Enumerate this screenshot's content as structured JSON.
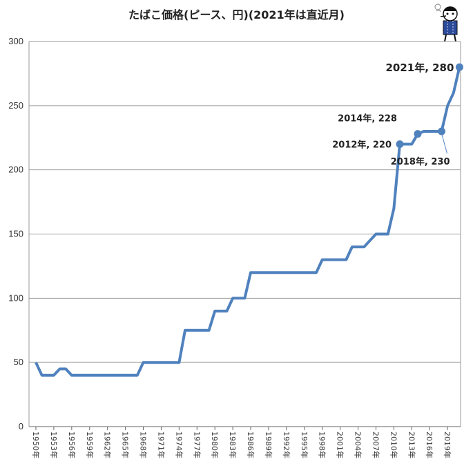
{
  "chart_data": {
    "type": "line",
    "title": "たばこ価格(ピース、円)(2021年は直近月)",
    "xlabel": "",
    "ylabel": "",
    "ylim": [
      0,
      300
    ],
    "yticks": [
      0,
      50,
      100,
      150,
      200,
      250,
      300
    ],
    "grid": true,
    "xlim": [
      1950,
      2021
    ],
    "xtick_labels": [
      "1950年",
      "1953年",
      "1956年",
      "1959年",
      "1962年",
      "1965年",
      "1968年",
      "1971年",
      "1974年",
      "1977年",
      "1980年",
      "1983年",
      "1986年",
      "1989年",
      "1992年",
      "1995年",
      "1998年",
      "2001年",
      "2004年",
      "2007年",
      "2010年",
      "2013年",
      "2016年",
      "2019年"
    ],
    "xtick_years": [
      1950,
      1953,
      1956,
      1959,
      1962,
      1965,
      1968,
      1971,
      1974,
      1977,
      1980,
      1983,
      1986,
      1989,
      1992,
      1995,
      1998,
      2001,
      2004,
      2007,
      2010,
      2013,
      2016,
      2019
    ],
    "series": [
      {
        "name": "",
        "color": "#4f81bd",
        "points": [
          [
            1950,
            50
          ],
          [
            1951,
            40
          ],
          [
            1952,
            40
          ],
          [
            1953,
            40
          ],
          [
            1954,
            45
          ],
          [
            1955,
            45
          ],
          [
            1956,
            40
          ],
          [
            1957,
            40
          ],
          [
            1958,
            40
          ],
          [
            1959,
            40
          ],
          [
            1960,
            40
          ],
          [
            1961,
            40
          ],
          [
            1962,
            40
          ],
          [
            1963,
            40
          ],
          [
            1964,
            40
          ],
          [
            1965,
            40
          ],
          [
            1966,
            40
          ],
          [
            1967,
            40
          ],
          [
            1968,
            50
          ],
          [
            1969,
            50
          ],
          [
            1970,
            50
          ],
          [
            1971,
            50
          ],
          [
            1972,
            50
          ],
          [
            1973,
            50
          ],
          [
            1974,
            50
          ],
          [
            1975,
            75
          ],
          [
            1976,
            75
          ],
          [
            1977,
            75
          ],
          [
            1978,
            75
          ],
          [
            1979,
            75
          ],
          [
            1980,
            90
          ],
          [
            1981,
            90
          ],
          [
            1982,
            90
          ],
          [
            1983,
            100
          ],
          [
            1984,
            100
          ],
          [
            1985,
            100
          ],
          [
            1986,
            120
          ],
          [
            1987,
            120
          ],
          [
            1988,
            120
          ],
          [
            1989,
            120
          ],
          [
            1990,
            120
          ],
          [
            1991,
            120
          ],
          [
            1992,
            120
          ],
          [
            1993,
            120
          ],
          [
            1994,
            120
          ],
          [
            1995,
            120
          ],
          [
            1996,
            120
          ],
          [
            1997,
            120
          ],
          [
            1998,
            130
          ],
          [
            1999,
            130
          ],
          [
            2000,
            130
          ],
          [
            2001,
            130
          ],
          [
            2002,
            130
          ],
          [
            2003,
            140
          ],
          [
            2004,
            140
          ],
          [
            2005,
            140
          ],
          [
            2006,
            145
          ],
          [
            2007,
            150
          ],
          [
            2008,
            150
          ],
          [
            2009,
            150
          ],
          [
            2010,
            170
          ],
          [
            2011,
            220
          ],
          [
            2012,
            220
          ],
          [
            2013,
            220
          ],
          [
            2014,
            228
          ],
          [
            2015,
            230
          ],
          [
            2016,
            230
          ],
          [
            2017,
            230
          ],
          [
            2018,
            230
          ],
          [
            2019,
            250
          ],
          [
            2020,
            260
          ],
          [
            2021,
            280
          ]
        ]
      }
    ],
    "markers": [
      {
        "x": 2011,
        "y": 220
      },
      {
        "x": 2014,
        "y": 228
      },
      {
        "x": 2018,
        "y": 230
      },
      {
        "x": 2021,
        "y": 280
      }
    ],
    "annotations": [
      {
        "text": "2021年, 280",
        "x": 2021,
        "y": 280
      },
      {
        "text": "2014年, 228",
        "x": 2014,
        "y": 228
      },
      {
        "text": "2012年, 220",
        "x": 2011,
        "y": 220
      },
      {
        "text": "2018年, 230",
        "x": 2018,
        "y": 230
      }
    ]
  }
}
